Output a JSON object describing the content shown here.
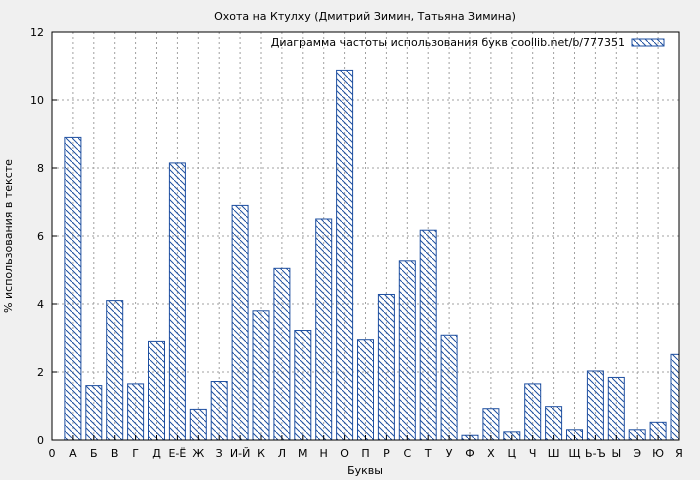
{
  "chart_data": {
    "type": "bar",
    "title": "Охота на Ктулху (Дмитрий Зимин, Татьяна Зимина)",
    "xlabel": "Буквы",
    "ylabel": "% использования в тексте",
    "ylim": [
      0,
      12
    ],
    "yticks": [
      0,
      2,
      4,
      6,
      8,
      10,
      12
    ],
    "x_origin_label": "0",
    "grid": true,
    "legend_position": "top-right",
    "bar_color": "#1e4fa0",
    "series": [
      {
        "name": "Диаграмма частоты использования букв coollib.net/b/777351"
      }
    ],
    "categories": [
      "А",
      "Б",
      "В",
      "Г",
      "Д",
      "Е-Ё",
      "Ж",
      "З",
      "И-Й",
      "К",
      "Л",
      "М",
      "Н",
      "О",
      "П",
      "Р",
      "С",
      "Т",
      "У",
      "Ф",
      "Х",
      "Ц",
      "Ч",
      "Ш",
      "Щ",
      "Ь-Ъ",
      "Ы",
      "Э",
      "Ю",
      "Я"
    ],
    "values": [
      8.9,
      1.6,
      4.1,
      1.65,
      2.9,
      8.15,
      0.9,
      1.72,
      6.9,
      3.8,
      5.05,
      3.22,
      6.5,
      10.87,
      2.95,
      4.28,
      5.27,
      6.17,
      3.08,
      0.14,
      0.92,
      0.24,
      1.65,
      0.98,
      0.3,
      2.03,
      1.84,
      0.3,
      0.52,
      2.52
    ]
  }
}
